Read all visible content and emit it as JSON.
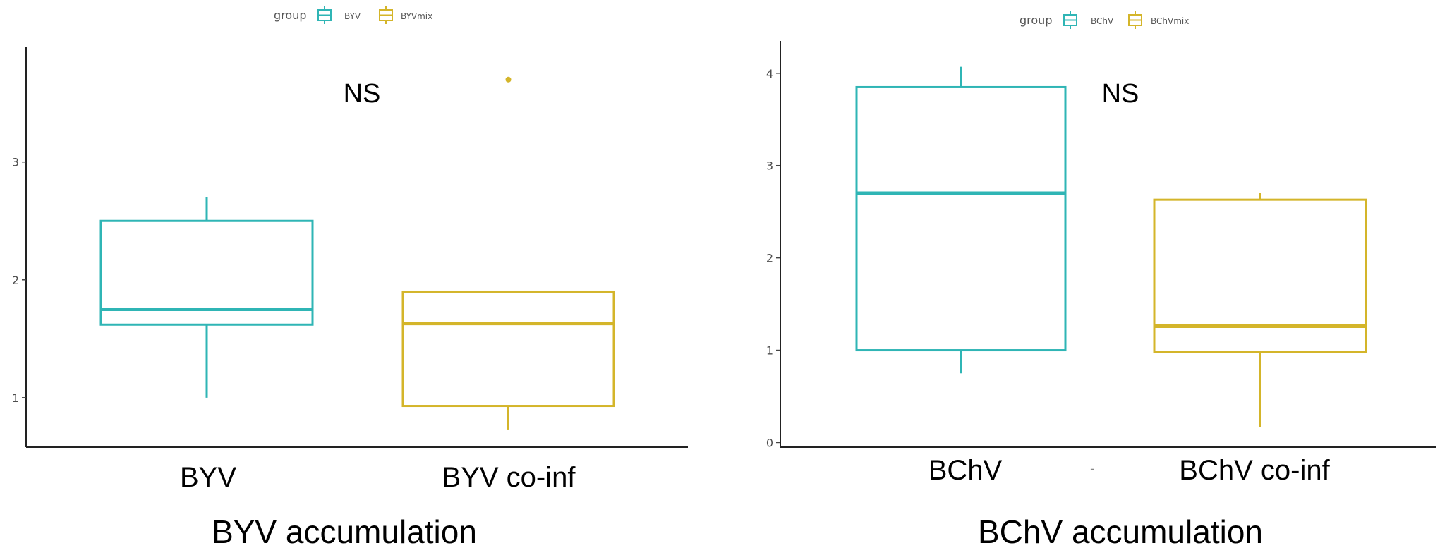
{
  "chart_data": [
    {
      "type": "box",
      "title": "BYV accumulation",
      "annotation": "NS",
      "legend": {
        "title": "group",
        "position": "top",
        "entries": [
          "BYV",
          "BYVmix"
        ]
      },
      "categories": [
        "BYV",
        "BYV co-inf"
      ],
      "ylim": [
        0.58,
        3.98
      ],
      "yticks": [
        "1",
        "2",
        "3"
      ],
      "grid": false,
      "colors": [
        "#2fb5b5",
        "#d4b52a"
      ],
      "boxes": [
        {
          "category": "BYV",
          "group": "BYV",
          "min": 1.0,
          "q1": 1.62,
          "median": 1.75,
          "q3": 2.5,
          "max": 2.7,
          "outliers": []
        },
        {
          "category": "BYV co-inf",
          "group": "BYVmix",
          "min": 0.73,
          "q1": 0.93,
          "median": 1.63,
          "q3": 1.9,
          "max": 1.9,
          "outliers": [
            3.7
          ]
        }
      ]
    },
    {
      "type": "box",
      "title": "BChV accumulation",
      "annotation": "NS",
      "legend": {
        "title": "group",
        "position": "top",
        "entries": [
          "BChV",
          "BChVmix"
        ]
      },
      "categories": [
        "BChV",
        "BChV co-inf"
      ],
      "ylim": [
        -0.05,
        4.35
      ],
      "yticks": [
        "0",
        "1",
        "2",
        "3",
        "4"
      ],
      "grid": false,
      "colors": [
        "#2fb5b5",
        "#d4b52a"
      ],
      "boxes": [
        {
          "category": "BChV",
          "group": "BChV",
          "min": 0.75,
          "q1": 1.0,
          "median": 2.7,
          "q3": 3.85,
          "max": 4.07,
          "outliers": []
        },
        {
          "category": "BChV co-inf",
          "group": "BChVmix",
          "min": 0.17,
          "q1": 0.98,
          "median": 1.26,
          "q3": 2.63,
          "max": 2.7,
          "outliers": []
        }
      ]
    }
  ],
  "footer_mark": "-"
}
